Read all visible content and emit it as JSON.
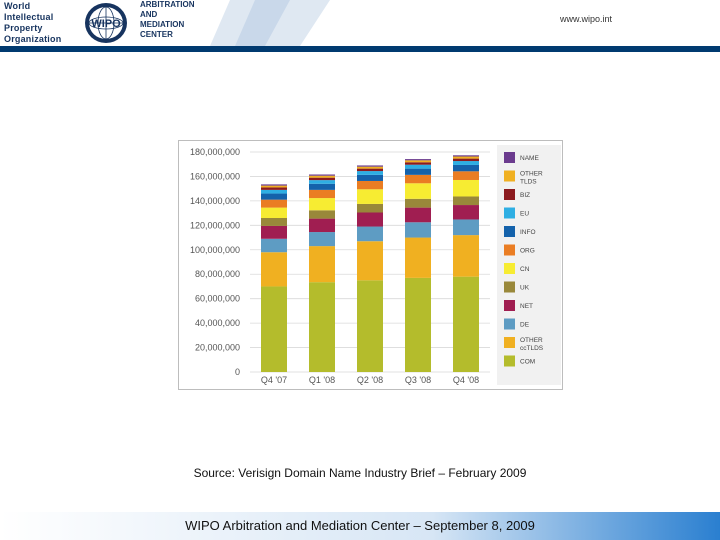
{
  "header": {
    "org_lines": [
      "World",
      "Intellectual",
      "Property",
      "Organization"
    ],
    "center_lines": [
      "ARBITRATION",
      "AND",
      "MEDIATION",
      "CENTER"
    ],
    "url": "www.wipo.int",
    "logo_text": "WIPO",
    "colors": {
      "navy": "#003a70",
      "band": "#1e77c9"
    }
  },
  "source_text": "Source:  Verisign Domain Name Industry Brief – February 2009",
  "footer_text": "WIPO Arbitration and Mediation Center – September 8, 2009",
  "chart_data": {
    "type": "bar",
    "stacked": true,
    "categories": [
      "Q4 '07",
      "Q1 '08",
      "Q2 '08",
      "Q3 '08",
      "Q4 '08"
    ],
    "ylim": [
      0,
      180000000
    ],
    "yticks": [
      0,
      20000000,
      40000000,
      60000000,
      80000000,
      100000000,
      120000000,
      140000000,
      160000000,
      180000000
    ],
    "ytick_labels": [
      "0",
      "20,000,000",
      "40,000,000",
      "60,000,000",
      "80,000,000",
      "100,000,000",
      "120,000,000",
      "140,000,000",
      "160,000,000",
      "180,000,000"
    ],
    "grid": true,
    "legend_position": "right",
    "series": [
      {
        "name": "COM",
        "color": "#b4bc2c",
        "values": [
          70000000,
          73500000,
          75000000,
          77000000,
          78000000
        ]
      },
      {
        "name": "OTHER ccTLDS",
        "color": "#f0b021",
        "values": [
          28000000,
          29500000,
          32000000,
          33000000,
          34000000
        ]
      },
      {
        "name": "DE",
        "color": "#5e9cc3",
        "values": [
          11000000,
          11500000,
          12000000,
          12500000,
          12800000
        ]
      },
      {
        "name": "NET",
        "color": "#a01e51",
        "values": [
          10500000,
          11000000,
          11500000,
          12000000,
          11800000
        ]
      },
      {
        "name": "UK",
        "color": "#99883a",
        "values": [
          6500000,
          6800000,
          7000000,
          7200000,
          7000000
        ]
      },
      {
        "name": "CN",
        "color": "#f7ec32",
        "values": [
          8500000,
          10000000,
          12000000,
          12700000,
          13500000
        ]
      },
      {
        "name": "ORG",
        "color": "#ea7d23",
        "values": [
          6500000,
          6700000,
          6800000,
          6900000,
          7100000
        ]
      },
      {
        "name": "INFO",
        "color": "#1462ab",
        "values": [
          5000000,
          5000000,
          5000000,
          5100000,
          5200000
        ]
      },
      {
        "name": "EU",
        "color": "#2eaee3",
        "values": [
          3000000,
          3000000,
          3100000,
          3200000,
          3200000
        ]
      },
      {
        "name": "BIZ",
        "color": "#8c1b1f",
        "values": [
          2000000,
          2000000,
          2000000,
          2000000,
          2000000
        ]
      },
      {
        "name": "OTHER TLDS",
        "color": "#f0b021",
        "values": [
          1500000,
          1600000,
          1600000,
          1600000,
          1700000
        ]
      },
      {
        "name": "NAME",
        "color": "#6b3b8e",
        "values": [
          1000000,
          1000000,
          1000000,
          1000000,
          1000000
        ]
      }
    ],
    "legend": [
      {
        "label": "NAME",
        "color": "#6b3b8e"
      },
      {
        "label": "OTHER TLDS",
        "color": "#f0b021"
      },
      {
        "label": "BIZ",
        "color": "#8c1b1f"
      },
      {
        "label": "EU",
        "color": "#2eaee3"
      },
      {
        "label": "INFO",
        "color": "#1462ab"
      },
      {
        "label": "ORG",
        "color": "#ea7d23"
      },
      {
        "label": "CN",
        "color": "#f7ec32"
      },
      {
        "label": "UK",
        "color": "#99883a"
      },
      {
        "label": "NET",
        "color": "#a01e51"
      },
      {
        "label": "DE",
        "color": "#5e9cc3"
      },
      {
        "label": "OTHER ccTLDS",
        "color": "#f0b021"
      },
      {
        "label": "COM",
        "color": "#b4bc2c"
      }
    ]
  }
}
